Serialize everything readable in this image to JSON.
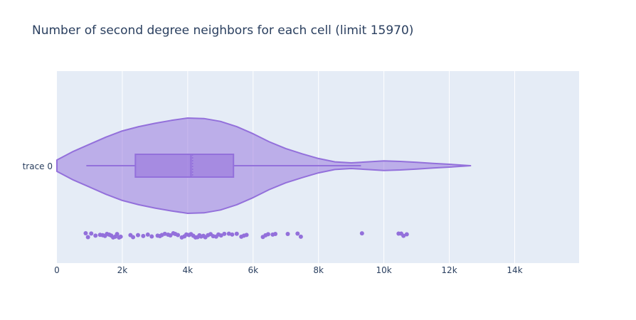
{
  "chart_data": {
    "type": "violin",
    "orientation": "horizontal",
    "title": "Number of second degree neighbors for each cell (limit 15970)",
    "xlabel": "",
    "ylabel": "",
    "xlim": [
      0,
      15970
    ],
    "x_ticks": [
      0,
      2000,
      4000,
      6000,
      8000,
      10000,
      12000,
      14000
    ],
    "x_tick_labels": [
      "0",
      "2k",
      "4k",
      "6k",
      "8k",
      "10k",
      "12k",
      "14k"
    ],
    "y_tick_label": "trace 0",
    "grid": true,
    "legend": "none",
    "colors": {
      "fill": "#9370db",
      "line": "#9370db",
      "plot_bg": "#e5ecf6",
      "grid": "#ffffff",
      "text": "#2a3f5f"
    },
    "box": {
      "whisker_low": 900,
      "q1": 2400,
      "median": 4100,
      "mean": 4150,
      "q3": 5400,
      "whisker_high": 9300
    },
    "kde_range": [
      0,
      12650
    ],
    "kde_half_width": [
      [
        0,
        0.12
      ],
      [
        500,
        0.3
      ],
      [
        1000,
        0.45
      ],
      [
        1500,
        0.6
      ],
      [
        2000,
        0.73
      ],
      [
        2500,
        0.82
      ],
      [
        3000,
        0.89
      ],
      [
        3500,
        0.95
      ],
      [
        4000,
        1.0
      ],
      [
        4500,
        0.99
      ],
      [
        5000,
        0.93
      ],
      [
        5500,
        0.82
      ],
      [
        6000,
        0.67
      ],
      [
        6500,
        0.5
      ],
      [
        7000,
        0.36
      ],
      [
        7500,
        0.25
      ],
      [
        8000,
        0.15
      ],
      [
        8500,
        0.08
      ],
      [
        9000,
        0.06
      ],
      [
        9500,
        0.08
      ],
      [
        10000,
        0.1
      ],
      [
        10500,
        0.09
      ],
      [
        11000,
        0.07
      ],
      [
        11500,
        0.05
      ],
      [
        12000,
        0.03
      ],
      [
        12650,
        0.0
      ]
    ],
    "points": [
      880,
      950,
      1050,
      1180,
      1320,
      1400,
      1470,
      1530,
      1600,
      1660,
      1720,
      1780,
      1840,
      1900,
      1950,
      2250,
      2330,
      2480,
      2640,
      2780,
      2900,
      3080,
      3150,
      3210,
      3300,
      3400,
      3470,
      3560,
      3620,
      3700,
      3820,
      3900,
      3960,
      4040,
      4100,
      4170,
      4240,
      4300,
      4360,
      4410,
      4480,
      4540,
      4620,
      4700,
      4780,
      4870,
      4940,
      5020,
      5120,
      5260,
      5360,
      5500,
      5640,
      5720,
      5800,
      6300,
      6380,
      6460,
      6600,
      6680,
      7060,
      7360,
      7460,
      9330,
      10450,
      10530,
      10600,
      10700
    ]
  }
}
